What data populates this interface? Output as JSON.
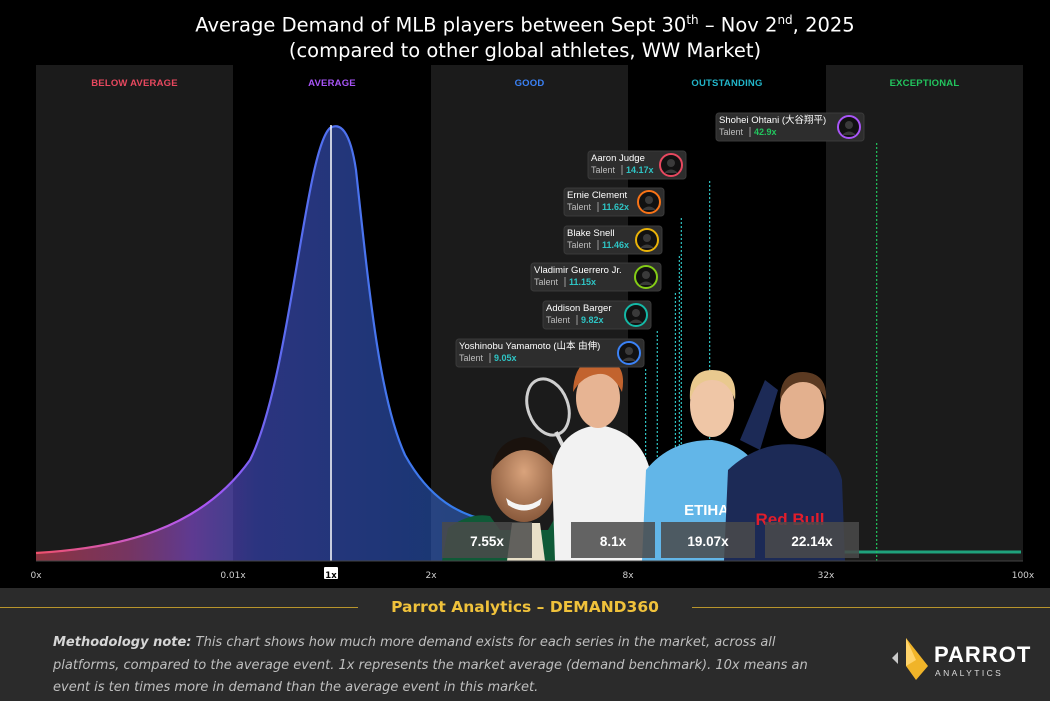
{
  "title": {
    "line1_pre": "Average Demand of MLB players between Sept 30",
    "line1_sup1": "th",
    "line1_mid": " – Nov 2",
    "line1_sup2": "nd",
    "line1_post": ", 2025",
    "line2": "(compared to other global athletes, WW Market)"
  },
  "colors": {
    "below_average": "#e8485f",
    "average": "#a855f7",
    "good": "#3b82f6",
    "outstanding": "#22b5c9",
    "exceptional": "#22c55e",
    "value_teal": "#2ec4c4",
    "gold": "#f0c23b"
  },
  "chart_data": {
    "type": "area",
    "title": "Average Demand of MLB players between Sept 30th – Nov 2nd, 2025",
    "subtitle": "(compared to other global athletes, WW Market)",
    "xscale": "log-band",
    "x_ticks": [
      "0x",
      "0.01x",
      "1x",
      "2x",
      "8x",
      "32x",
      "100x"
    ],
    "bands": [
      {
        "label": "BELOW AVERAGE",
        "from": "0x",
        "to": "0.01x",
        "color": "#e8485f"
      },
      {
        "label": "AVERAGE",
        "from": "0.01x",
        "to": "2x",
        "color": "#a855f7"
      },
      {
        "label": "GOOD",
        "from": "2x",
        "to": "8x",
        "color": "#3b82f6"
      },
      {
        "label": "OUTSTANDING",
        "from": "8x",
        "to": "32x",
        "color": "#22b5c9"
      },
      {
        "label": "EXCEPTIONAL",
        "from": "32x",
        "to": "100x",
        "color": "#22c55e"
      }
    ],
    "benchmark": {
      "label": "1x",
      "value": 1
    },
    "mlb_players": [
      {
        "name": "Shohei Ohtani (大谷翔平)",
        "category": "Talent",
        "value": 42.9,
        "label": "42.9x",
        "tier": "exceptional"
      },
      {
        "name": "Aaron Judge",
        "category": "Talent",
        "value": 14.17,
        "label": "14.17x",
        "tier": "outstanding"
      },
      {
        "name": "Ernie Clement",
        "category": "Talent",
        "value": 11.62,
        "label": "11.62x",
        "tier": "outstanding"
      },
      {
        "name": "Blake Snell",
        "category": "Talent",
        "value": 11.46,
        "label": "11.46x",
        "tier": "outstanding"
      },
      {
        "name": "Vladimir Guerrero Jr.",
        "category": "Talent",
        "value": 11.15,
        "label": "11.15x",
        "tier": "outstanding"
      },
      {
        "name": "Addison Barger",
        "category": "Talent",
        "value": 9.82,
        "label": "9.82x",
        "tier": "outstanding"
      },
      {
        "name": "Yoshinobu Yamamoto (山本 由伸)",
        "category": "Talent",
        "value": 9.05,
        "label": "9.05x",
        "tier": "outstanding"
      }
    ],
    "other_athletes": [
      {
        "value": 7.55,
        "label": "7.55x"
      },
      {
        "value": 8.1,
        "label": "8.1x"
      },
      {
        "value": 19.07,
        "label": "19.07x"
      },
      {
        "value": 22.14,
        "label": "22.14x"
      }
    ]
  },
  "footer": {
    "brand": "Parrot Analytics – DEMAND360",
    "method_bold": "Methodology note:",
    "method_text": " This chart shows how much more demand exists for each series in the market, across all platforms, compared to the average event. 1x represents the market average (demand benchmark). 10x means an event is ten times more in demand than the average event in this market.",
    "logo_word": "PARROT",
    "logo_sub": "ANALYTICS"
  }
}
